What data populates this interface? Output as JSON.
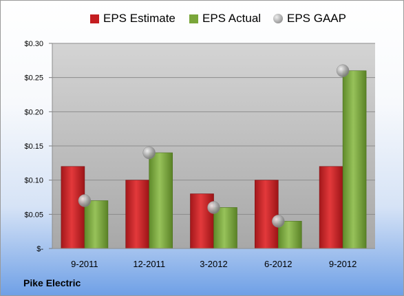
{
  "chart_data": {
    "type": "bar",
    "categories": [
      "9-2011",
      "12-2011",
      "3-2012",
      "6-2012",
      "9-2012"
    ],
    "series": [
      {
        "name": "EPS Estimate",
        "values": [
          0.12,
          0.1,
          0.08,
          0.1,
          0.12
        ],
        "color": "#c41d20"
      },
      {
        "name": "EPS Actual",
        "values": [
          0.07,
          0.14,
          0.06,
          0.04,
          0.26
        ],
        "color": "#7aa63a"
      }
    ],
    "points": {
      "name": "EPS GAAP",
      "values": [
        0.07,
        0.14,
        0.06,
        0.04,
        0.26
      ],
      "color": "#aaaaaa"
    },
    "ylim": [
      0,
      0.3
    ],
    "yticks": [
      "$-",
      "$0.05",
      "$0.10",
      "$0.15",
      "$0.20",
      "$0.25",
      "$0.30"
    ],
    "grid": true,
    "legend_position": "top"
  },
  "footer": {
    "company": "Pike Electric"
  }
}
